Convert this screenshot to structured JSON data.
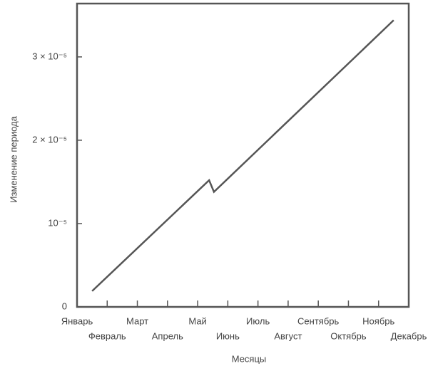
{
  "chart_data": {
    "type": "line",
    "x_label": "Месяцы",
    "y_label": "Изменение периода",
    "categories": [
      "Январь",
      "Февраль",
      "Март",
      "Апрель",
      "Май",
      "Июнь",
      "Июль",
      "Август",
      "Сентябрь",
      "Октябрь",
      "Ноябрь",
      "Декабрь"
    ],
    "xlim": [
      0,
      11
    ],
    "ylim": [
      0,
      3.64e-05
    ],
    "yticks": [
      0,
      {
        "value": 1e-05,
        "label": "10⁻⁵"
      },
      {
        "value": 2e-05,
        "label": "2 × 10⁻⁵"
      },
      {
        "value": 3e-05,
        "label": "3 × 10⁻⁵"
      }
    ],
    "series": [
      {
        "color": "#555555",
        "x": [
          0.5,
          4.38,
          4.54,
          10.5
        ],
        "values": [
          1.9e-06,
          1.52e-05,
          1.38e-05,
          3.44e-05
        ]
      }
    ]
  }
}
